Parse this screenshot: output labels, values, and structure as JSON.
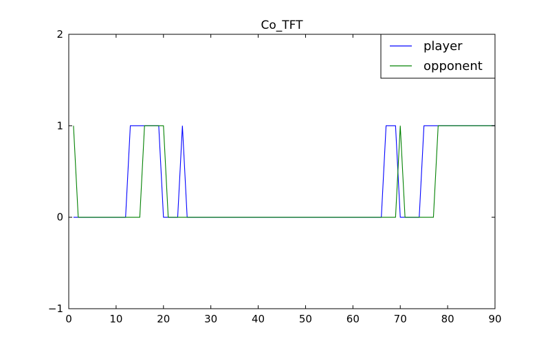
{
  "chart_data": {
    "type": "line",
    "title": "Co_TFT",
    "xlabel": "",
    "ylabel": "",
    "xlim": [
      0,
      90
    ],
    "ylim": [
      -1,
      2
    ],
    "x_ticks": [
      0,
      10,
      20,
      30,
      40,
      50,
      60,
      70,
      80,
      90
    ],
    "x_tick_labels": [
      "0",
      "10",
      "20",
      "30",
      "40",
      "50",
      "60",
      "70",
      "80",
      "90"
    ],
    "y_ticks": [
      -1,
      0,
      1,
      2
    ],
    "y_tick_labels": [
      "−1",
      "0",
      "1",
      "2"
    ],
    "grid": false,
    "legend_position": "top-right",
    "x": [
      0,
      1,
      2,
      3,
      4,
      5,
      6,
      7,
      8,
      9,
      10,
      11,
      12,
      13,
      14,
      15,
      16,
      17,
      18,
      19,
      20,
      21,
      22,
      23,
      24,
      25,
      26,
      27,
      28,
      29,
      30,
      31,
      32,
      33,
      34,
      35,
      36,
      37,
      38,
      39,
      40,
      41,
      42,
      43,
      44,
      45,
      46,
      47,
      48,
      49,
      50,
      51,
      52,
      53,
      54,
      55,
      56,
      57,
      58,
      59,
      60,
      61,
      62,
      63,
      64,
      65,
      66,
      67,
      68,
      69,
      70,
      71,
      72,
      73,
      74,
      75,
      76,
      77,
      78,
      79,
      80,
      81,
      82,
      83,
      84,
      85,
      86,
      87,
      88,
      89,
      90
    ],
    "series": [
      {
        "name": "player",
        "color": "#0000ff",
        "values": [
          null,
          0,
          0,
          0,
          0,
          0,
          0,
          0,
          0,
          0,
          0,
          0,
          0,
          1,
          1,
          1,
          1,
          1,
          1,
          1,
          0,
          0,
          0,
          0,
          1,
          0,
          0,
          0,
          0,
          0,
          0,
          0,
          0,
          0,
          0,
          0,
          0,
          0,
          0,
          0,
          0,
          0,
          0,
          0,
          0,
          0,
          0,
          0,
          0,
          0,
          0,
          0,
          0,
          0,
          0,
          0,
          0,
          0,
          0,
          0,
          0,
          0,
          0,
          0,
          0,
          0,
          0,
          1,
          1,
          1,
          0,
          0,
          0,
          0,
          0,
          1,
          1,
          1,
          1,
          1,
          1,
          1,
          1,
          1,
          1,
          1,
          1,
          1,
          1,
          1,
          1
        ]
      },
      {
        "name": "opponent",
        "color": "#008000",
        "values": [
          null,
          1,
          0,
          0,
          0,
          0,
          0,
          0,
          0,
          0,
          0,
          0,
          0,
          0,
          0,
          0,
          1,
          1,
          1,
          1,
          1,
          0,
          0,
          0,
          0,
          0,
          0,
          0,
          0,
          0,
          0,
          0,
          0,
          0,
          0,
          0,
          0,
          0,
          0,
          0,
          0,
          0,
          0,
          0,
          0,
          0,
          0,
          0,
          0,
          0,
          0,
          0,
          0,
          0,
          0,
          0,
          0,
          0,
          0,
          0,
          0,
          0,
          0,
          0,
          0,
          0,
          0,
          0,
          0,
          0,
          1,
          0,
          0,
          0,
          0,
          0,
          0,
          0,
          1,
          1,
          1,
          1,
          1,
          1,
          1,
          1,
          1,
          1,
          1,
          1,
          1
        ]
      }
    ]
  }
}
